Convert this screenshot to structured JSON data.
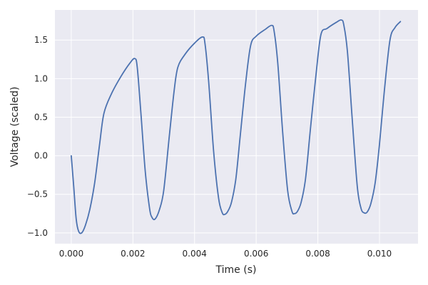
{
  "chart_data": {
    "type": "line",
    "title": "",
    "xlabel": "Time (s)",
    "ylabel": "Voltage (scaled)",
    "xlim": [
      -0.00053,
      0.01125
    ],
    "ylim": [
      -1.14,
      1.89
    ],
    "grid": true,
    "legend": "none",
    "colors": {
      "background": "#eaeaf2",
      "grid": "#ffffff",
      "line": "#4c72b0",
      "text": "#262626"
    },
    "x_ticks": [
      {
        "value": 0.0,
        "label": "0.000"
      },
      {
        "value": 0.002,
        "label": "0.002"
      },
      {
        "value": 0.004,
        "label": "0.004"
      },
      {
        "value": 0.006,
        "label": "0.006"
      },
      {
        "value": 0.008,
        "label": "0.008"
      },
      {
        "value": 0.01,
        "label": "0.010"
      }
    ],
    "y_ticks": [
      {
        "value": -1.0,
        "label": "−1.0"
      },
      {
        "value": -0.5,
        "label": "−0.5"
      },
      {
        "value": 0.0,
        "label": "0.0"
      },
      {
        "value": 0.5,
        "label": "0.5"
      },
      {
        "value": 1.0,
        "label": "1.0"
      },
      {
        "value": 1.5,
        "label": "1.5"
      }
    ],
    "series": [
      {
        "x": [
          0.0,
          8e-05,
          0.00016,
          0.00024,
          0.00034,
          0.00046,
          0.0006,
          0.00076,
          0.00092,
          0.00106,
          0.0013,
          0.0016,
          0.0019,
          0.00206,
          0.00214,
          0.00226,
          0.0024,
          0.00254,
          0.00262,
          0.00272,
          0.00286,
          0.003,
          0.00318,
          0.00334,
          0.00346,
          0.0037,
          0.004,
          0.00426,
          0.00434,
          0.00446,
          0.00462,
          0.00478,
          0.0049,
          0.00498,
          0.00508,
          0.0052,
          0.00534,
          0.00548,
          0.00566,
          0.00582,
          0.006,
          0.0063,
          0.0065,
          0.00658,
          0.0067,
          0.00686,
          0.00702,
          0.00716,
          0.00724,
          0.00734,
          0.00746,
          0.0076,
          0.00776,
          0.00794,
          0.0081,
          0.0083,
          0.0086,
          0.00876,
          0.00884,
          0.00896,
          0.00912,
          0.00928,
          0.0094,
          0.0095,
          0.0096,
          0.00972,
          0.00986,
          0.01,
          0.01016,
          0.01034,
          0.0105,
          0.01068
        ],
        "y": [
          0.0,
          -0.4,
          -0.82,
          -0.98,
          -1.0,
          -0.9,
          -0.7,
          -0.35,
          0.15,
          0.55,
          0.8,
          1.02,
          1.2,
          1.26,
          1.15,
          0.55,
          -0.2,
          -0.68,
          -0.8,
          -0.82,
          -0.7,
          -0.45,
          0.25,
          0.85,
          1.15,
          1.32,
          1.46,
          1.54,
          1.45,
          0.95,
          0.05,
          -0.55,
          -0.74,
          -0.76,
          -0.72,
          -0.6,
          -0.3,
          0.25,
          0.95,
          1.43,
          1.55,
          1.64,
          1.69,
          1.62,
          1.2,
          0.3,
          -0.45,
          -0.72,
          -0.75,
          -0.72,
          -0.6,
          -0.3,
          0.35,
          1.05,
          1.57,
          1.65,
          1.73,
          1.76,
          1.7,
          1.35,
          0.45,
          -0.4,
          -0.68,
          -0.74,
          -0.73,
          -0.62,
          -0.35,
          0.15,
          0.85,
          1.5,
          1.66,
          1.74
        ]
      }
    ]
  }
}
